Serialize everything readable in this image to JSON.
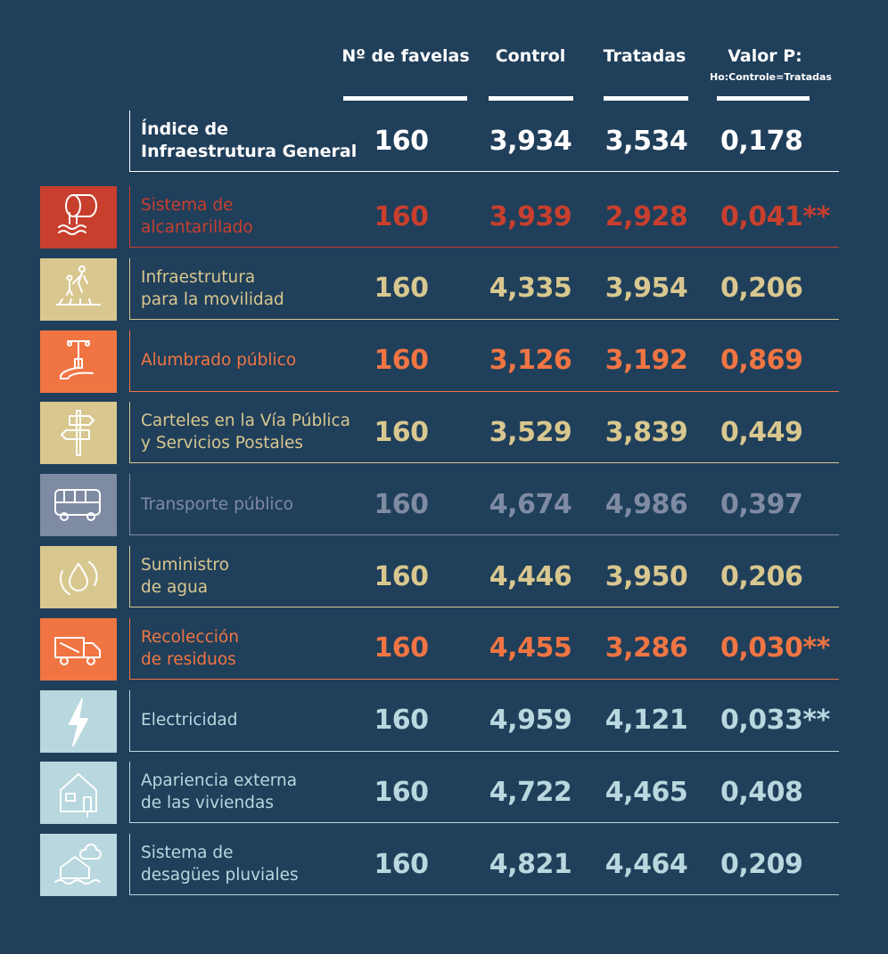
{
  "headers": {
    "favelas": "Nº de favelas",
    "control": "Control",
    "tratadas": "Tratadas",
    "valor": "Valor P:",
    "valor_sub": "Ho:Controle=Tratadas"
  },
  "colors": {
    "background": "#203f5a",
    "red": "#c83f2e",
    "tan": "#d8c78f",
    "orange": "#f07543",
    "grey": "#7f8ba3",
    "lightblue": "#b8d7de",
    "white": "#ffffff"
  },
  "main": {
    "label": "Índice de\nInfraestrutura General",
    "favelas": "160",
    "control": "3,934",
    "tratadas": "3,534",
    "valor": "0,178"
  },
  "rows": [
    {
      "label": "Sistema de\nalcantarillado",
      "favelas": "160",
      "control": "3,939",
      "tratadas": "2,928",
      "valor": "0,041**",
      "color": "#c83f2e",
      "icon": "sewer-pipe-icon"
    },
    {
      "label": "Infraestrutura\npara la movilidad",
      "favelas": "160",
      "control": "4,335",
      "tratadas": "3,954",
      "valor": "0,206",
      "color": "#d8c78f",
      "icon": "pedestrians-crossing-icon"
    },
    {
      "label": "Alumbrado público",
      "favelas": "160",
      "control": "3,126",
      "tratadas": "3,192",
      "valor": "0,869",
      "color": "#f07543",
      "icon": "street-lamp-icon"
    },
    {
      "label": "Carteles en la Vía Pública\ny Servicios Postales",
      "favelas": "160",
      "control": "3,529",
      "tratadas": "3,839",
      "valor": "0,449",
      "color": "#d8c78f",
      "icon": "signpost-icon"
    },
    {
      "label": "Transporte público",
      "favelas": "160",
      "control": "4,674",
      "tratadas": "4,986",
      "valor": "0,397",
      "color": "#7f8ba3",
      "icon": "bus-icon"
    },
    {
      "label": "Suministro\nde agua",
      "favelas": "160",
      "control": "4,446",
      "tratadas": "3,950",
      "valor": "0,206",
      "color": "#d8c78f",
      "icon": "water-drop-cycle-icon"
    },
    {
      "label": "Recolección\nde residuos",
      "favelas": "160",
      "control": "4,455",
      "tratadas": "3,286",
      "valor": "0,030**",
      "color": "#f07543",
      "icon": "garbage-truck-icon"
    },
    {
      "label": "Electricidad",
      "favelas": "160",
      "control": "4,959",
      "tratadas": "4,121",
      "valor": "0,033**",
      "color": "#b8d7de",
      "icon": "lightning-icon"
    },
    {
      "label": "Apariencia externa\nde las viviendas",
      "favelas": "160",
      "control": "4,722",
      "tratadas": "4,465",
      "valor": "0,408",
      "color": "#b8d7de",
      "icon": "house-icon"
    },
    {
      "label": "Sistema de\ndesagües pluviales",
      "favelas": "160",
      "control": "4,821",
      "tratadas": "4,464",
      "valor": "0,209",
      "color": "#b8d7de",
      "icon": "flooded-house-icon"
    }
  ]
}
